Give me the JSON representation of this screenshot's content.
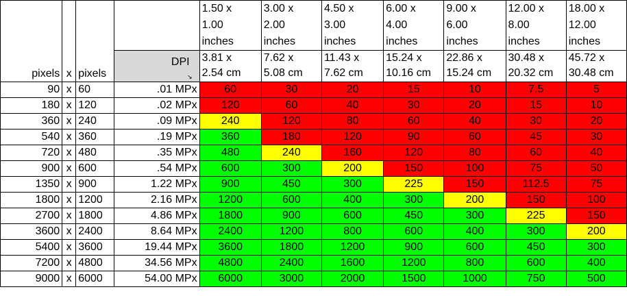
{
  "header": {
    "left_labels": {
      "pixels_a": "pixels",
      "x": "x",
      "pixels_b": "pixels"
    },
    "dpi_label": "DPI",
    "dpi_corner": "↘",
    "sizes": [
      {
        "inches": [
          "1.50 x",
          "1.00",
          "inches"
        ],
        "cm": [
          "3.81 x",
          "2.54 cm"
        ]
      },
      {
        "inches": [
          "3.00 x",
          "2.00",
          "inches"
        ],
        "cm": [
          "7.62 x",
          "5.08 cm"
        ]
      },
      {
        "inches": [
          "4.50 x",
          "3.00",
          "inches"
        ],
        "cm": [
          "11.43 x",
          "7.62 cm"
        ]
      },
      {
        "inches": [
          "6.00 x",
          "4.00",
          "inches"
        ],
        "cm": [
          "15.24 x",
          "10.16 cm"
        ]
      },
      {
        "inches": [
          "9.00 x",
          "6.00",
          "inches"
        ],
        "cm": [
          "22.86 x",
          "15.24 cm"
        ]
      },
      {
        "inches": [
          "12.00 x",
          "8.00",
          "inches"
        ],
        "cm": [
          "30.48 x",
          "20.32 cm"
        ]
      },
      {
        "inches": [
          "18.00 x",
          "12.00",
          "inches"
        ],
        "cm": [
          "45.72 x",
          "30.48 cm"
        ]
      }
    ]
  },
  "colors": {
    "red": "#ff0000",
    "yellow": "#ffff00",
    "green": "#00ff00",
    "header_gray": "#d8d8d8"
  },
  "rows": [
    {
      "w": "90",
      "x": "x",
      "h": "60",
      "mp": ".01 MPx",
      "cells": [
        [
          "60",
          "red"
        ],
        [
          "30",
          "red"
        ],
        [
          "20",
          "red"
        ],
        [
          "15",
          "red"
        ],
        [
          "10",
          "red"
        ],
        [
          "7.5",
          "red"
        ],
        [
          "5",
          "red"
        ]
      ]
    },
    {
      "w": "180",
      "x": "x",
      "h": "120",
      "mp": ".02 MPx",
      "cells": [
        [
          "120",
          "red"
        ],
        [
          "60",
          "red"
        ],
        [
          "40",
          "red"
        ],
        [
          "30",
          "red"
        ],
        [
          "20",
          "red"
        ],
        [
          "15",
          "red"
        ],
        [
          "10",
          "red"
        ]
      ]
    },
    {
      "w": "360",
      "x": "x",
      "h": "240",
      "mp": ".09 MPx",
      "cells": [
        [
          "240",
          "yellow"
        ],
        [
          "120",
          "red"
        ],
        [
          "80",
          "red"
        ],
        [
          "60",
          "red"
        ],
        [
          "40",
          "red"
        ],
        [
          "30",
          "red"
        ],
        [
          "20",
          "red"
        ]
      ]
    },
    {
      "w": "540",
      "x": "x",
      "h": "360",
      "mp": ".19 MPx",
      "cells": [
        [
          "360",
          "green"
        ],
        [
          "180",
          "red"
        ],
        [
          "120",
          "red"
        ],
        [
          "90",
          "red"
        ],
        [
          "60",
          "red"
        ],
        [
          "45",
          "red"
        ],
        [
          "30",
          "red"
        ]
      ]
    },
    {
      "w": "720",
      "x": "x",
      "h": "480",
      "mp": ".35 MPx",
      "cells": [
        [
          "480",
          "green"
        ],
        [
          "240",
          "yellow"
        ],
        [
          "160",
          "red"
        ],
        [
          "120",
          "red"
        ],
        [
          "80",
          "red"
        ],
        [
          "60",
          "red"
        ],
        [
          "40",
          "red"
        ]
      ]
    },
    {
      "w": "900",
      "x": "x",
      "h": "600",
      "mp": ".54 MPx",
      "cells": [
        [
          "600",
          "green"
        ],
        [
          "300",
          "green"
        ],
        [
          "200",
          "yellow"
        ],
        [
          "150",
          "red"
        ],
        [
          "100",
          "red"
        ],
        [
          "75",
          "red"
        ],
        [
          "50",
          "red"
        ]
      ]
    },
    {
      "w": "1350",
      "x": "x",
      "h": "900",
      "mp": "1.22 MPx",
      "cells": [
        [
          "900",
          "green"
        ],
        [
          "450",
          "green"
        ],
        [
          "300",
          "green"
        ],
        [
          "225",
          "yellow"
        ],
        [
          "150",
          "red"
        ],
        [
          "112.5",
          "red"
        ],
        [
          "75",
          "red"
        ]
      ]
    },
    {
      "w": "1800",
      "x": "x",
      "h": "1200",
      "mp": "2.16 MPx",
      "cells": [
        [
          "1200",
          "green"
        ],
        [
          "600",
          "green"
        ],
        [
          "400",
          "green"
        ],
        [
          "300",
          "green"
        ],
        [
          "200",
          "yellow"
        ],
        [
          "150",
          "red"
        ],
        [
          "100",
          "red"
        ]
      ]
    },
    {
      "w": "2700",
      "x": "x",
      "h": "1800",
      "mp": "4.86 MPx",
      "cells": [
        [
          "1800",
          "green"
        ],
        [
          "900",
          "green"
        ],
        [
          "600",
          "green"
        ],
        [
          "450",
          "green"
        ],
        [
          "300",
          "green"
        ],
        [
          "225",
          "yellow"
        ],
        [
          "150",
          "red"
        ]
      ]
    },
    {
      "w": "3600",
      "x": "x",
      "h": "2400",
      "mp": "8.64 MPx",
      "cells": [
        [
          "2400",
          "green"
        ],
        [
          "1200",
          "green"
        ],
        [
          "800",
          "green"
        ],
        [
          "600",
          "green"
        ],
        [
          "400",
          "green"
        ],
        [
          "300",
          "green"
        ],
        [
          "200",
          "yellow"
        ]
      ]
    },
    {
      "w": "5400",
      "x": "x",
      "h": "3600",
      "mp": "19.44 MPx",
      "cells": [
        [
          "3600",
          "green"
        ],
        [
          "1800",
          "green"
        ],
        [
          "1200",
          "green"
        ],
        [
          "900",
          "green"
        ],
        [
          "600",
          "green"
        ],
        [
          "450",
          "green"
        ],
        [
          "300",
          "green"
        ]
      ]
    },
    {
      "w": "7200",
      "x": "x",
      "h": "4800",
      "mp": "34.56 MPx",
      "cells": [
        [
          "4800",
          "green"
        ],
        [
          "2400",
          "green"
        ],
        [
          "1600",
          "green"
        ],
        [
          "1200",
          "green"
        ],
        [
          "800",
          "green"
        ],
        [
          "600",
          "green"
        ],
        [
          "400",
          "green"
        ]
      ]
    },
    {
      "w": "9000",
      "x": "x",
      "h": "6000",
      "mp": "54.00 MPx",
      "cells": [
        [
          "6000",
          "green"
        ],
        [
          "3000",
          "green"
        ],
        [
          "2000",
          "green"
        ],
        [
          "1500",
          "green"
        ],
        [
          "1000",
          "green"
        ],
        [
          "750",
          "green"
        ],
        [
          "500",
          "green"
        ]
      ]
    }
  ]
}
